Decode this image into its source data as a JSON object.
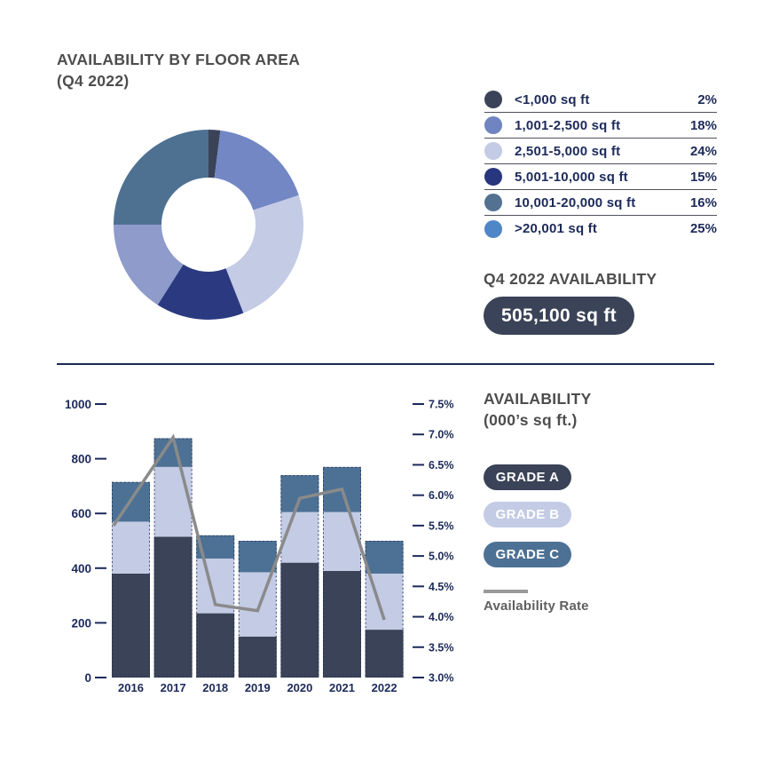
{
  "floor_area_section": {
    "title_line1": "AVAILABILITY BY FLOOR AREA",
    "title_line2": "(Q4 2022)",
    "legend": [
      {
        "label": "<1,000 sq ft",
        "pct": "2%"
      },
      {
        "label": "1,001-2,500 sq ft",
        "pct": "18%"
      },
      {
        "label": "2,501-5,000 sq ft",
        "pct": "24%"
      },
      {
        "label": "5,001-10,000 sq ft",
        "pct": "15%"
      },
      {
        "label": "10,001-20,000 sq ft",
        "pct": "16%"
      },
      {
        "label": ">20,001 sq ft",
        "pct": "25%"
      }
    ]
  },
  "availability_callout": {
    "heading": "Q4 2022 AVAILABILITY",
    "value": "505,100 sq ft"
  },
  "trend_section": {
    "heading_line1": "AVAILABILITY",
    "heading_line2": "(000’s sq ft.)",
    "rate_legend_label": "Availability Rate"
  },
  "colors": {
    "heading_gray": "#4d4d4d",
    "navy_text": "#1c2a5a",
    "divider_navy": "#1b2a52",
    "badge_bg": "#3a4357",
    "rate_line_gray": "#8a8a8a"
  },
  "chart_data": [
    {
      "type": "pie",
      "subtype": "donut",
      "title": "AVAILABILITY BY FLOOR AREA (Q4 2022)",
      "labels": [
        "<1,000 sq ft",
        "1,001-2,500 sq ft",
        "2,501-5,000 sq ft",
        "5,001-10,000 sq ft",
        "10,001-20,000 sq ft",
        ">20,001 sq ft"
      ],
      "values": [
        2,
        18,
        24,
        15,
        16,
        25
      ],
      "unit": "%",
      "start_angle_deg": 0,
      "direction": "clockwise",
      "segment_colors": [
        "#3a4357",
        "#7387c5",
        "#c3cbe5",
        "#2b3a80",
        "#8e9bcb",
        "#4e7192"
      ],
      "legend_swatch_colors": [
        "#3a4357",
        "#6f84c0",
        "#c3cbe5",
        "#27367e",
        "#537291",
        "#4f86c6"
      ],
      "legend_position": "right",
      "total_callout": "505,100 sq ft"
    },
    {
      "type": "bar",
      "subtype": "stacked-bars-with-line",
      "title": "AVAILABILITY (000's sq ft.)",
      "categories": [
        "2016",
        "2017",
        "2018",
        "2019",
        "2020",
        "2021",
        "2022"
      ],
      "series": [
        {
          "name": "GRADE A",
          "color": "#3a4357",
          "values": [
            380,
            515,
            235,
            150,
            420,
            390,
            175
          ]
        },
        {
          "name": "GRADE B",
          "color": "#c3cbe5",
          "values": [
            190,
            255,
            200,
            235,
            185,
            215,
            205
          ]
        },
        {
          "name": "GRADE C",
          "color": "#4d7195",
          "values": [
            145,
            105,
            85,
            115,
            135,
            165,
            120
          ]
        }
      ],
      "stacked_totals": [
        715,
        875,
        520,
        500,
        740,
        770,
        500
      ],
      "line_series": {
        "name": "Availability Rate",
        "color": "#8a8a8a",
        "values": [
          5.5,
          6.95,
          4.2,
          4.1,
          5.95,
          6.1,
          3.95
        ],
        "unit": "%"
      },
      "left_axis": {
        "ticks": [
          1000,
          800,
          600,
          400,
          200,
          0
        ],
        "range": [
          0,
          1000
        ],
        "label": "000's sq ft"
      },
      "right_axis": {
        "tick_labels": [
          "7.5%",
          "7.0%",
          "6.5%",
          "6.0%",
          "5.5%",
          "5.0%",
          "4.5%",
          "4.0%",
          "3.5%",
          "3.0%"
        ],
        "tick_values": [
          7.5,
          7.0,
          6.5,
          6.0,
          5.5,
          5.0,
          4.5,
          4.0,
          3.5,
          3.0
        ],
        "range": [
          3.0,
          7.5
        ]
      },
      "grid": false,
      "legend_position": "right"
    }
  ]
}
